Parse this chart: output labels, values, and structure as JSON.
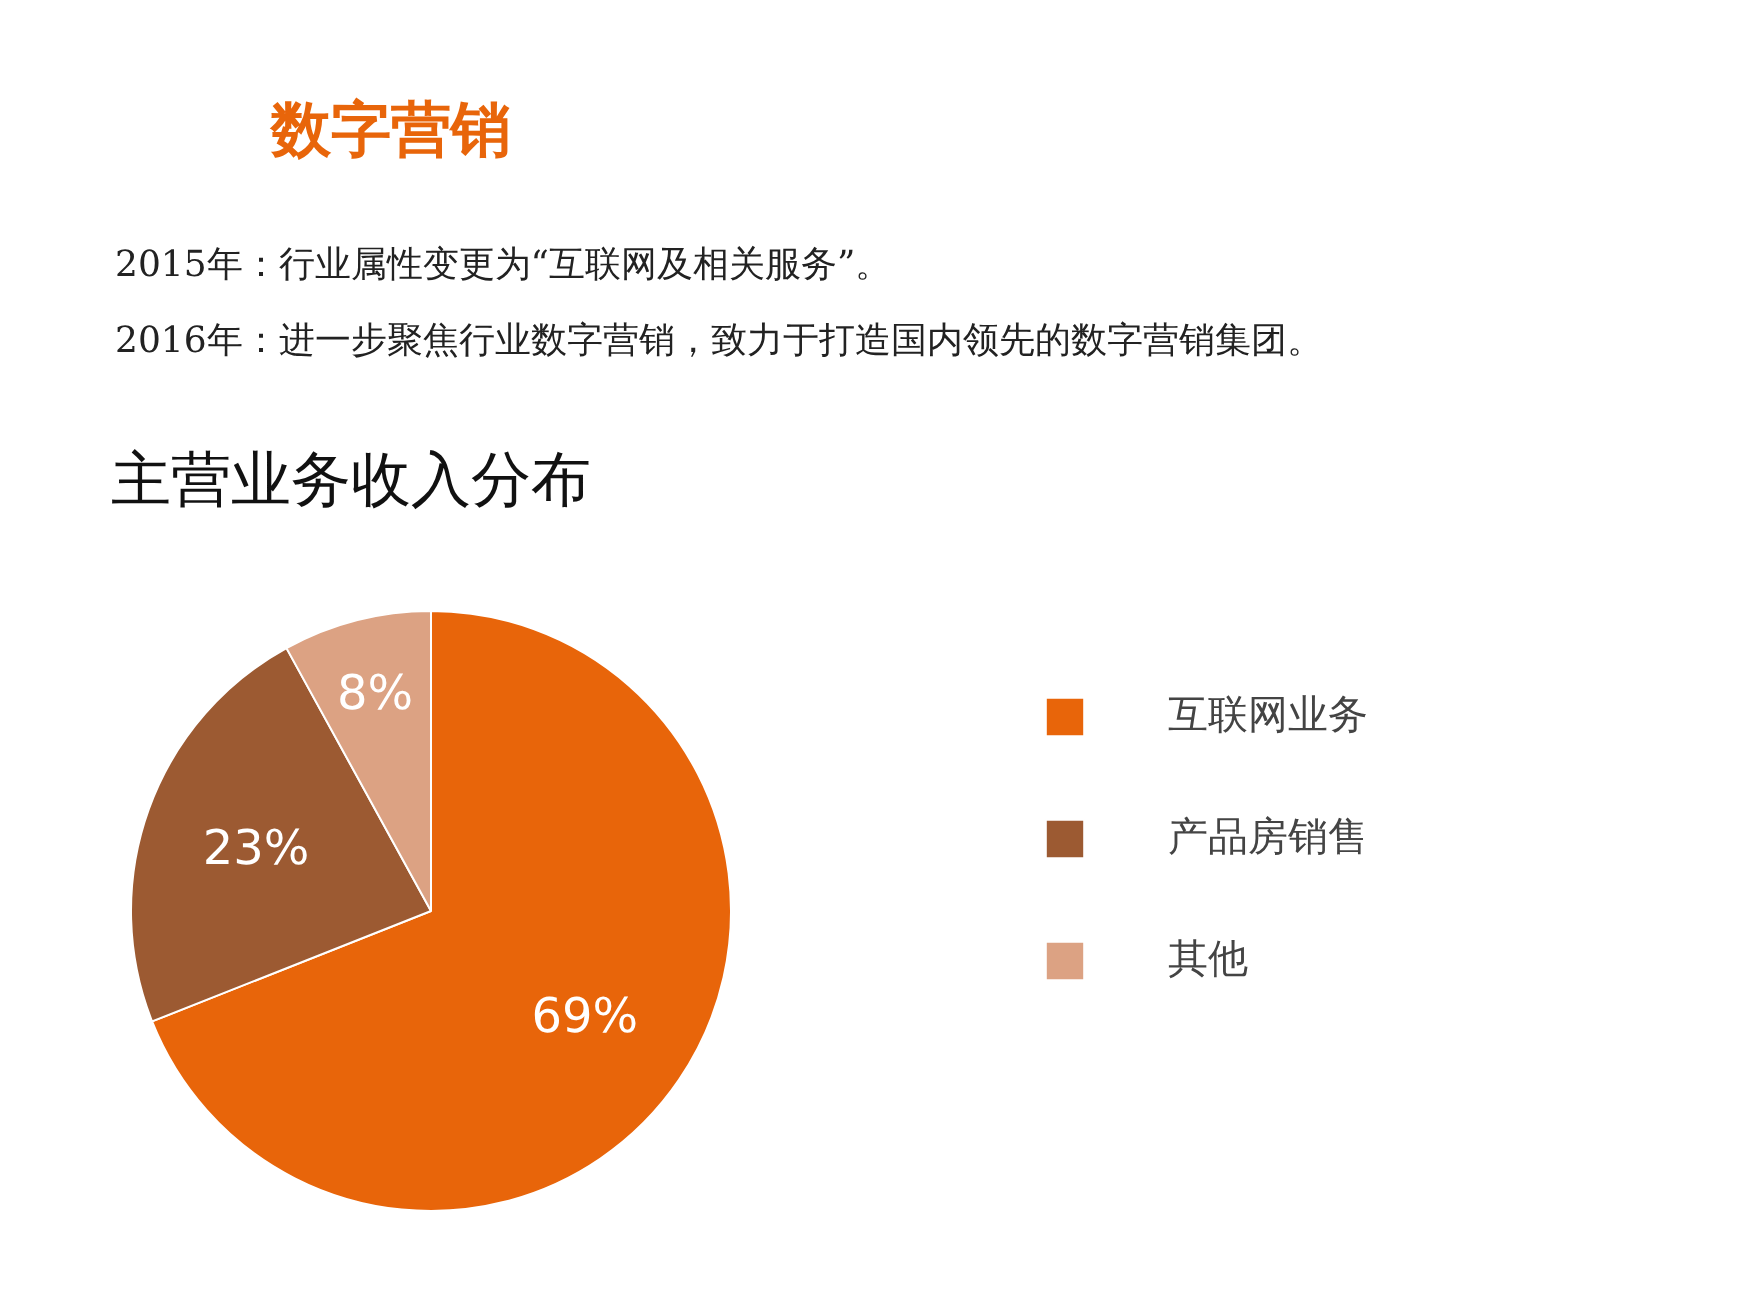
{
  "chart_data": {
    "type": "pie",
    "title": "数字营销",
    "subtitle": "主营业务收入分布",
    "annotations": [
      "2015年：行业属性变更为“互联网及相关服务”。",
      "2016年：进一步聚焦行业数字营销，致力于打造国内领先的数字营销集团。"
    ],
    "categories": [
      "互联网业务",
      "产品房销售",
      "其他"
    ],
    "values": [
      69,
      23,
      8
    ],
    "colors": [
      "#e8650a",
      "#9c5a32",
      "#dca283"
    ],
    "value_labels": [
      "69%",
      "23%",
      "8%"
    ],
    "legend": "right"
  }
}
